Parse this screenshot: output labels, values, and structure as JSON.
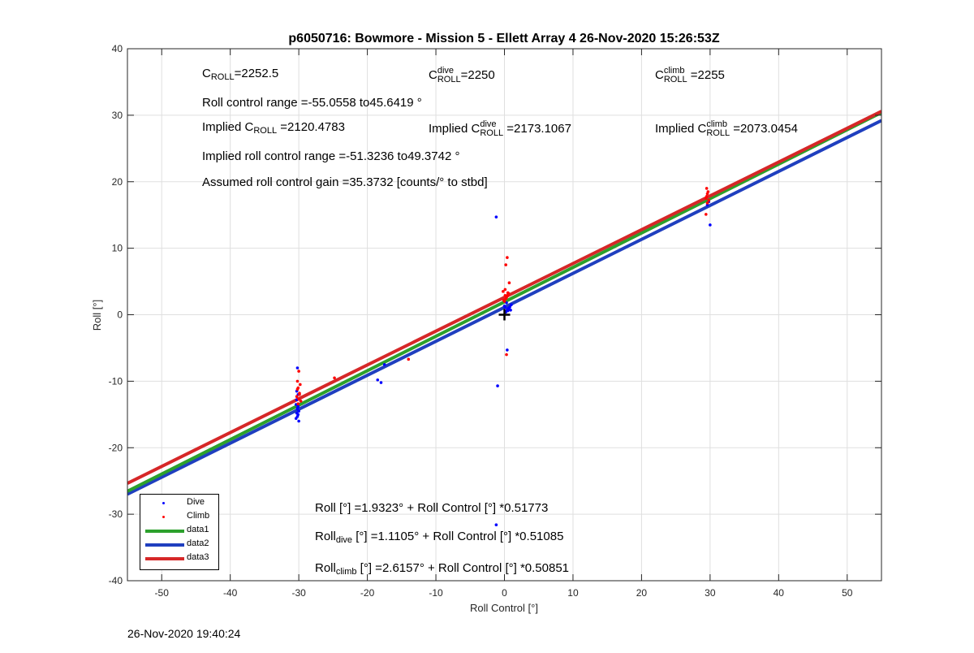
{
  "chart_data": {
    "type": "scatter",
    "title": "p6050716: Bowmore - Mission 5 - Ellett Array 4 26-Nov-2020 15:26:53Z",
    "xlabel": "Roll Control [°]",
    "ylabel": "Roll [°]",
    "xlim": [
      -55,
      55
    ],
    "ylim": [
      -40,
      40
    ],
    "xticks": [
      -50,
      -40,
      -30,
      -20,
      -10,
      0,
      10,
      20,
      30,
      40,
      50
    ],
    "yticks": [
      -40,
      -30,
      -20,
      -10,
      0,
      10,
      20,
      30,
      40
    ],
    "grid": true,
    "legend_position": "bottom-left",
    "colors": {
      "dive": "#0000ff",
      "climb": "#ff0000",
      "data1": "#2ca02c",
      "data2": "#1f3fbf",
      "data3": "#d62728",
      "marker": "#000000"
    },
    "series": [
      {
        "name": "Dive",
        "kind": "points",
        "x": [
          -30.2,
          -30.3,
          -30.1,
          -30.4,
          -30.2,
          -30.0,
          -30.3,
          -30.1,
          -30.2,
          -30.4,
          -30.0,
          -30.2,
          -30.1,
          -30.3,
          -18.5,
          -18.0,
          -17.5,
          -1.2,
          -1.0,
          0.2,
          0.4,
          0.6,
          0.8,
          1.0,
          0.3,
          0.5,
          0.7,
          0.1,
          0.9,
          0.2,
          0.4,
          -1.2,
          0.0,
          29.6,
          29.8,
          30.0
        ],
        "y": [
          -8.0,
          -11.5,
          -12.0,
          -13.5,
          -14.0,
          -14.5,
          -14.8,
          -15.0,
          -15.3,
          -15.6,
          -16.0,
          -14.2,
          -13.8,
          -12.8,
          -9.8,
          -10.2,
          -7.5,
          14.7,
          -10.7,
          0.5,
          0.8,
          1.0,
          1.2,
          1.5,
          1.8,
          0.6,
          0.9,
          1.1,
          0.7,
          0.4,
          -5.3,
          -31.6,
          1.3,
          16.5,
          17.0,
          13.5
        ]
      },
      {
        "name": "Climb",
        "kind": "points",
        "x": [
          -30.0,
          -30.2,
          -29.8,
          -30.1,
          -29.9,
          -30.3,
          -30.0,
          -29.7,
          -30.1,
          -29.9,
          -30.2,
          -24.8,
          -14.0,
          0.0,
          0.2,
          0.4,
          0.6,
          -0.2,
          0.1,
          0.3,
          0.5,
          0.7,
          -0.1,
          0.2,
          0.4,
          0.3,
          0.1,
          0.5,
          29.4,
          29.5,
          29.6,
          29.7,
          29.5,
          29.6,
          29.4,
          29.8
        ],
        "y": [
          -8.5,
          -10.0,
          -10.5,
          -11.0,
          -11.8,
          -12.3,
          -12.7,
          -13.0,
          -13.4,
          -12.0,
          -11.2,
          -9.5,
          -6.7,
          2.0,
          2.4,
          2.8,
          3.2,
          3.5,
          3.8,
          2.6,
          3.0,
          4.8,
          2.2,
          7.5,
          8.6,
          -6.0,
          2.9,
          3.3,
          17.5,
          17.8,
          18.2,
          18.5,
          19.0,
          16.8,
          15.1,
          17.2
        ]
      },
      {
        "name": "data1",
        "kind": "line",
        "x": [
          -55,
          55
        ],
        "y": [
          -26.5425,
          30.4078
        ]
      },
      {
        "name": "data2",
        "kind": "line",
        "x": [
          -55,
          55
        ],
        "y": [
          -26.9862,
          29.2073
        ]
      },
      {
        "name": "data3",
        "kind": "line",
        "x": [
          -55,
          55
        ],
        "y": [
          -25.3524,
          30.5838
        ]
      }
    ],
    "zero_marker": {
      "x": 0,
      "y": 0
    }
  },
  "annotations": {
    "c_roll": {
      "base": "C",
      "sub": "ROLL",
      "value": "=2252.5"
    },
    "c_roll_dive": {
      "base": "C",
      "sup": "dive",
      "sub": "ROLL",
      "value": "=2250"
    },
    "c_roll_climb": {
      "base": "C",
      "sup": "climb",
      "sub": "ROLL",
      "value": "=2255"
    },
    "roll_range": "Roll control range =-55.0558 to45.6419 °",
    "implied_c_roll": {
      "prefix": "Implied C",
      "sub": "ROLL",
      "value": " =2120.4783"
    },
    "implied_c_roll_dive": {
      "prefix": "Implied C",
      "sup": "dive",
      "sub": "ROLL",
      "value": " =2173.1067"
    },
    "implied_c_roll_climb": {
      "prefix": "Implied C",
      "sup": "climb",
      "sub": "ROLL",
      "value": " =2073.0454"
    },
    "implied_range": "Implied roll control range =-51.3236 to49.3742 °",
    "gain": "Assumed roll control gain =35.3732 [counts/° to stbd]",
    "fit_all": "Roll [°] =1.9323° + Roll Control [°] *0.51773",
    "fit_dive": {
      "prefix": "Roll",
      "sub": "dive",
      "rest": " [°] =1.1105° + Roll Control [°] *0.51085"
    },
    "fit_climb": {
      "prefix": "Roll",
      "sub": "climb",
      "rest": " [°] =2.6157° + Roll Control [°] *0.50851"
    }
  },
  "timestamp": "26-Nov-2020 19:40:24"
}
